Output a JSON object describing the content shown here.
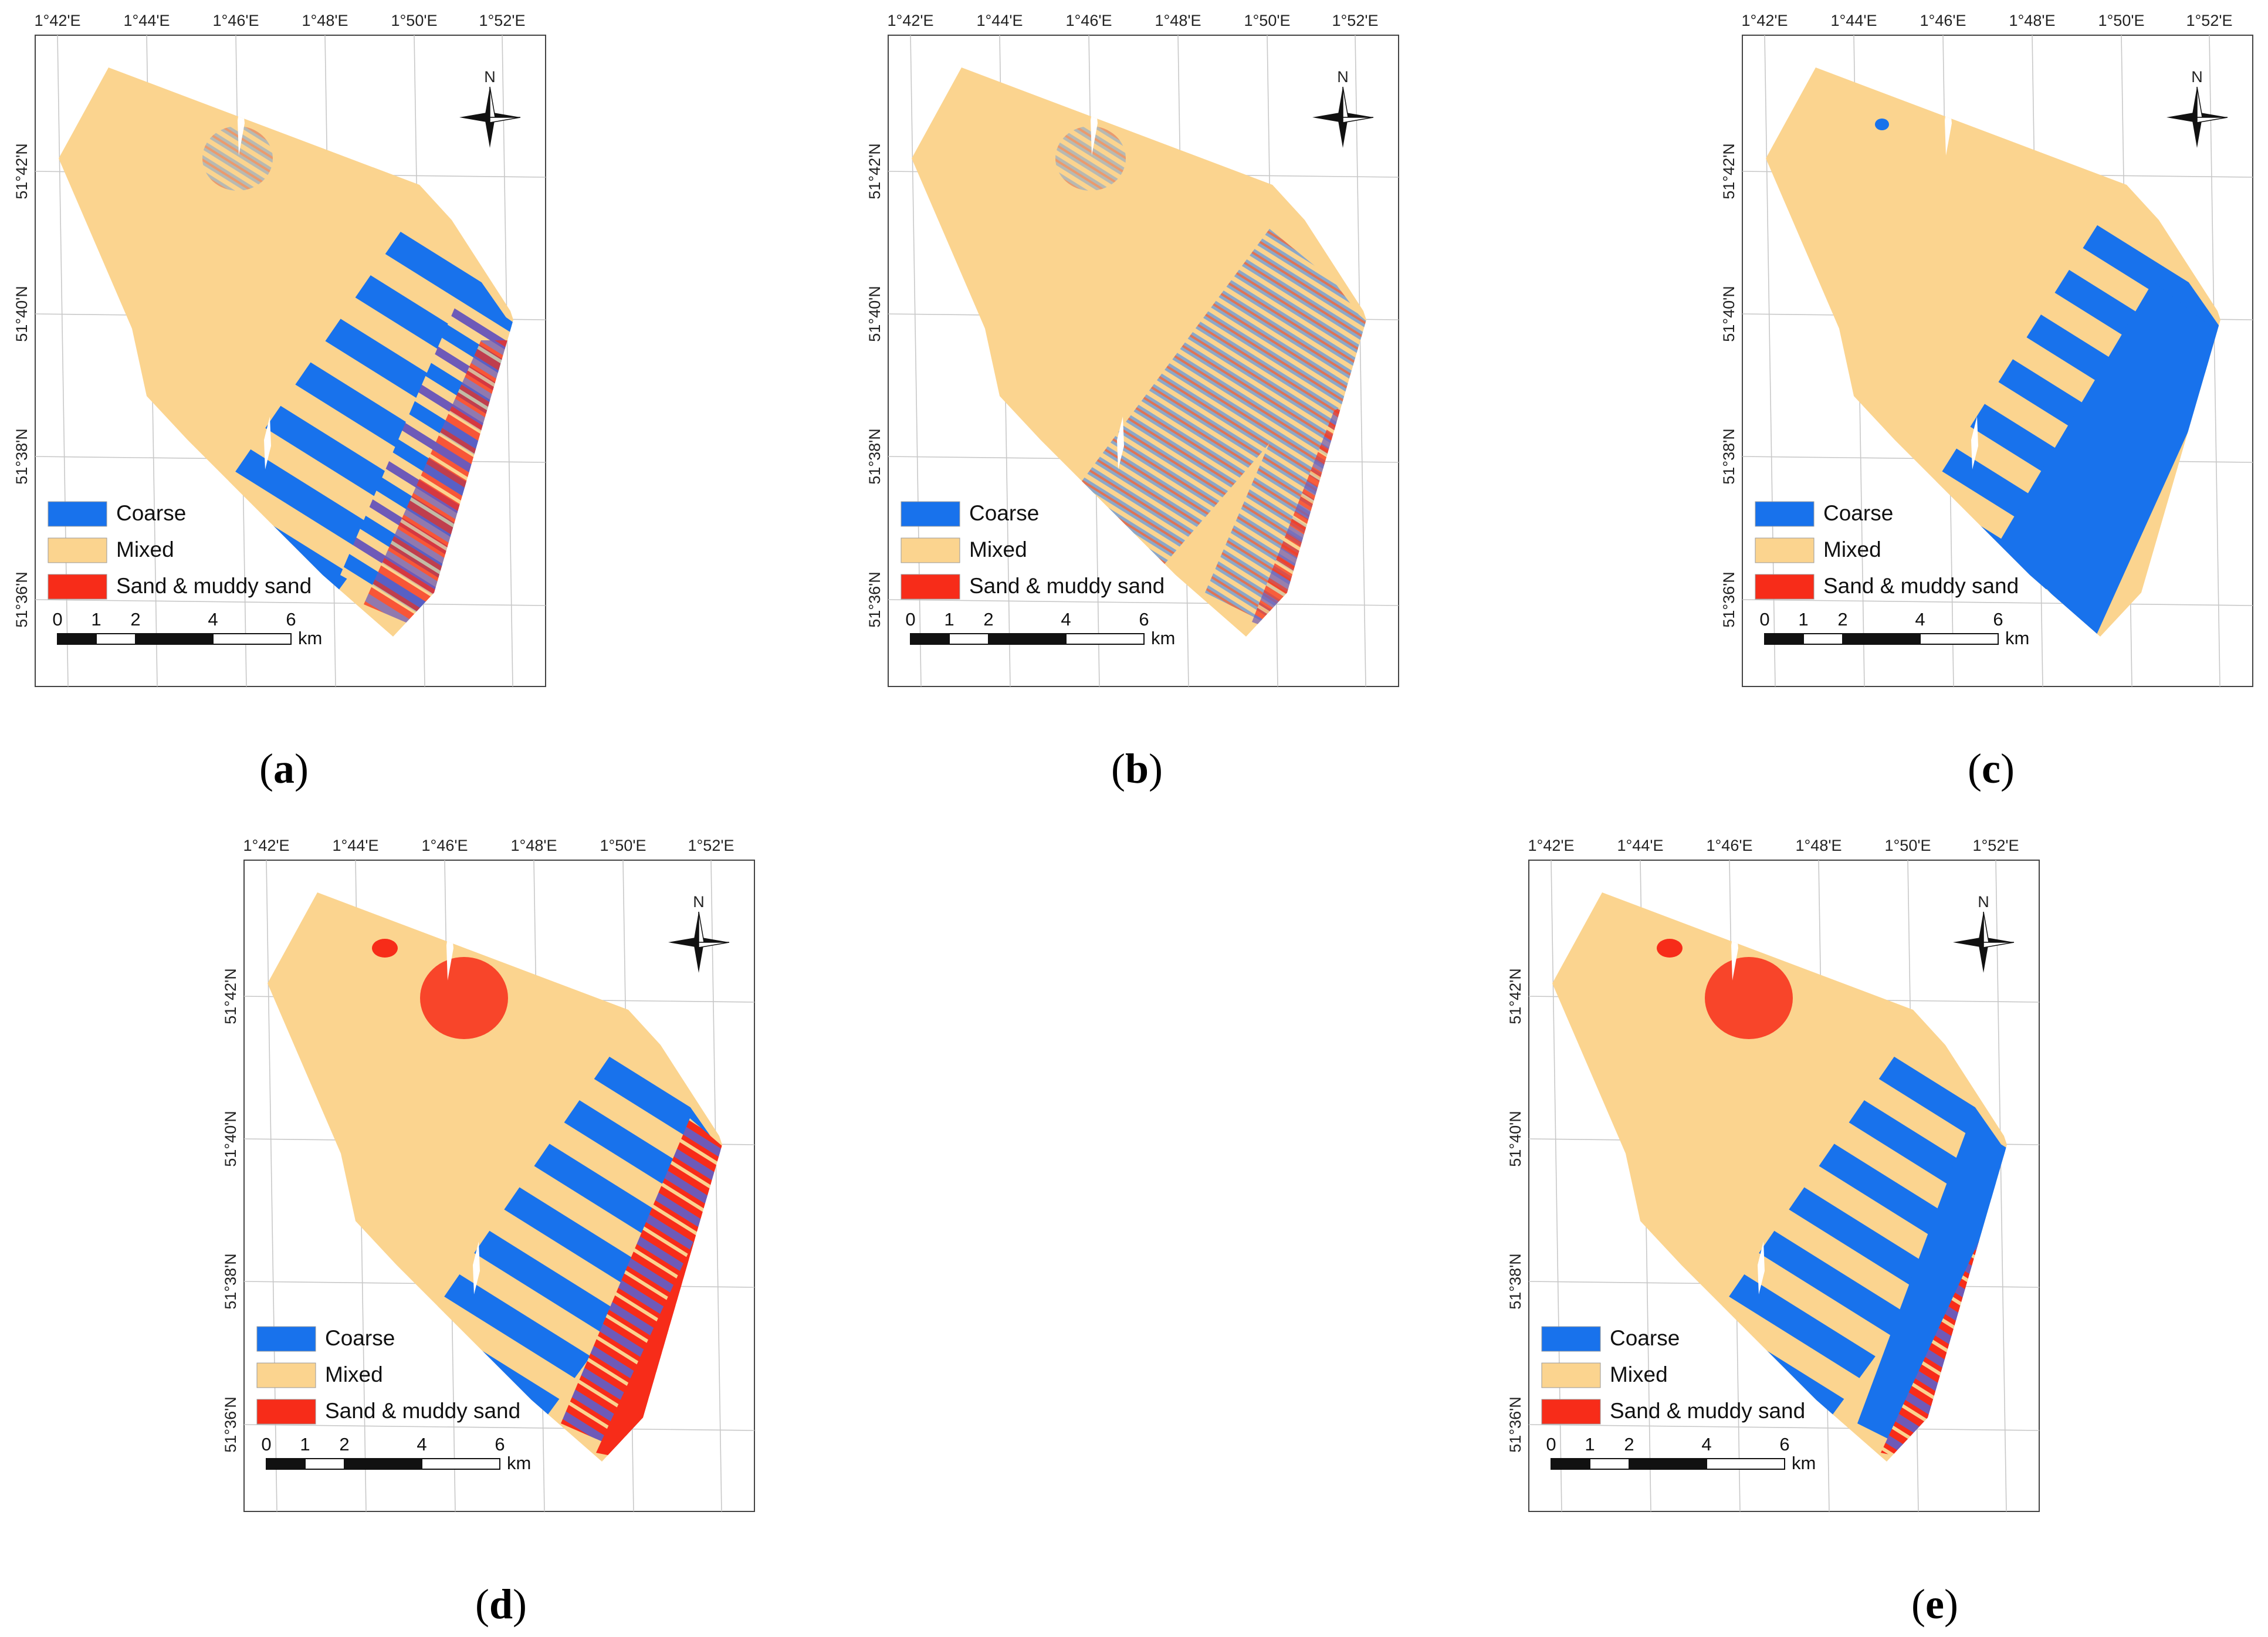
{
  "figure": {
    "panels": [
      {
        "id": "a",
        "caption_letter": "a",
        "scheme": "a"
      },
      {
        "id": "b",
        "caption_letter": "b",
        "scheme": "b"
      },
      {
        "id": "c",
        "caption_letter": "c",
        "scheme": "c"
      },
      {
        "id": "d",
        "caption_letter": "d",
        "scheme": "d"
      },
      {
        "id": "e",
        "caption_letter": "e",
        "scheme": "e"
      }
    ],
    "longitude_labels": [
      "1°42'E",
      "1°44'E",
      "1°46'E",
      "1°48'E",
      "1°50'E",
      "1°52'E"
    ],
    "latitude_labels": [
      "51°42'N",
      "51°40'N",
      "51°38'N",
      "51°36'N"
    ],
    "north_label": "N",
    "legend": [
      {
        "label": "Coarse",
        "color": "#1872ec"
      },
      {
        "label": "Mixed",
        "color": "#fbd48f"
      },
      {
        "label": "Sand & muddy sand",
        "color": "#f72c19"
      }
    ],
    "scale_ticks": [
      "0",
      "1",
      "2",
      "4",
      "6"
    ],
    "scale_unit": "km",
    "colors": {
      "coarse": "#1872ec",
      "mixed": "#fbd48f",
      "sand": "#f72c19",
      "purple": "#6e5ab8",
      "grid": "#c8c8c8",
      "frame": "#444444"
    }
  }
}
